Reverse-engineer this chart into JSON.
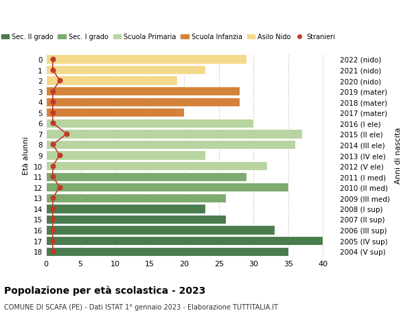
{
  "ages": [
    18,
    17,
    16,
    15,
    14,
    13,
    12,
    11,
    10,
    9,
    8,
    7,
    6,
    5,
    4,
    3,
    2,
    1,
    0
  ],
  "right_labels": [
    "2004 (V sup)",
    "2005 (IV sup)",
    "2006 (III sup)",
    "2007 (II sup)",
    "2008 (I sup)",
    "2009 (III med)",
    "2010 (II med)",
    "2011 (I med)",
    "2012 (V ele)",
    "2013 (IV ele)",
    "2014 (III ele)",
    "2015 (II ele)",
    "2016 (I ele)",
    "2017 (mater)",
    "2018 (mater)",
    "2019 (mater)",
    "2020 (nido)",
    "2021 (nido)",
    "2022 (nido)"
  ],
  "bar_values": [
    35,
    40,
    33,
    26,
    23,
    26,
    35,
    29,
    32,
    23,
    36,
    37,
    30,
    20,
    28,
    28,
    19,
    23,
    29
  ],
  "bar_colors": [
    "#4a7c4e",
    "#4a7c4e",
    "#4a7c4e",
    "#4a7c4e",
    "#4a7c4e",
    "#7daa6e",
    "#7daa6e",
    "#7daa6e",
    "#b8d4a0",
    "#b8d4a0",
    "#b8d4a0",
    "#b8d4a0",
    "#b8d4a0",
    "#d4823a",
    "#d4823a",
    "#d4823a",
    "#f5d98b",
    "#f5d98b",
    "#f5d98b"
  ],
  "stranieri_values": [
    1,
    1,
    1,
    1,
    1,
    1,
    2,
    1,
    1,
    2,
    1,
    3,
    1,
    1,
    1,
    1,
    2,
    1,
    1
  ],
  "stranieri_color": "#c0392b",
  "legend_labels": [
    "Sec. II grado",
    "Sec. I grado",
    "Scuola Primaria",
    "Scuola Infanzia",
    "Asilo Nido",
    "Stranieri"
  ],
  "legend_colors": [
    "#4a7c4e",
    "#7daa6e",
    "#b8d4a0",
    "#d4823a",
    "#f5d98b",
    "#c0392b"
  ],
  "title": "Popolazione per età scolastica - 2023",
  "subtitle": "COMUNE DI SCAFA (PE) - Dati ISTAT 1° gennaio 2023 - Elaborazione TUTTITALIA.IT",
  "xlabel_right": "Anni di nascita",
  "ylabel": "Età alunni",
  "xlim": [
    0,
    42
  ],
  "xticks": [
    0,
    5,
    10,
    15,
    20,
    25,
    30,
    35,
    40
  ],
  "bg_color": "#ffffff",
  "grid_color": "#cccccc",
  "bar_height": 0.85
}
